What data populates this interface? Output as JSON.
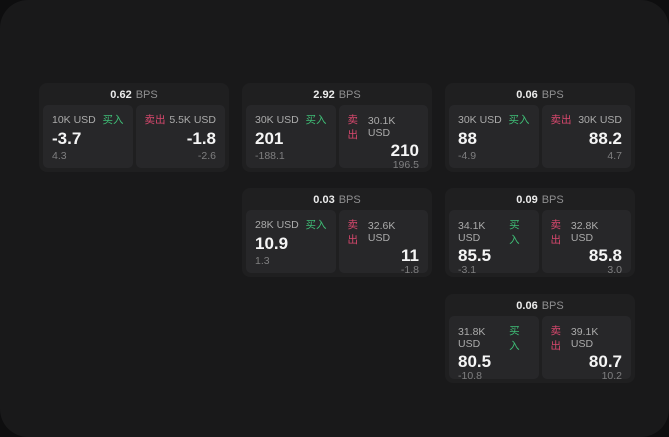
{
  "labels": {
    "bps_unit": "BPS",
    "buy": "买入",
    "sell": "卖出"
  },
  "colors": {
    "buy_green": "#3fbf77",
    "sell_red": "#d9486e",
    "window_bg": "#19191a",
    "card_bg": "#1f1f20",
    "panel_bg": "#272729"
  },
  "cards": [
    {
      "bps": "0.62",
      "buy": {
        "amount": "10K USD",
        "price": "-3.7",
        "delta": "4.3"
      },
      "sell": {
        "amount": "5.5K USD",
        "price": "-1.8",
        "delta": "-2.6"
      }
    },
    {
      "bps": "2.92",
      "buy": {
        "amount": "30K USD",
        "price": "201",
        "delta": "-188.1"
      },
      "sell": {
        "amount": "30.1K USD",
        "price": "210",
        "delta": "196.5"
      }
    },
    {
      "bps": "0.06",
      "buy": {
        "amount": "30K USD",
        "price": "88",
        "delta": "-4.9"
      },
      "sell": {
        "amount": "30K USD",
        "price": "88.2",
        "delta": "4.7"
      }
    },
    {
      "bps": "0.03",
      "buy": {
        "amount": "28K USD",
        "price": "10.9",
        "delta": "1.3"
      },
      "sell": {
        "amount": "32.6K USD",
        "price": "11",
        "delta": "-1.8"
      }
    },
    {
      "bps": "0.09",
      "buy": {
        "amount": "34.1K USD",
        "price": "85.5",
        "delta": "-3.1"
      },
      "sell": {
        "amount": "32.8K USD",
        "price": "85.8",
        "delta": "3.0"
      }
    },
    {
      "bps": "0.06",
      "buy": {
        "amount": "31.8K USD",
        "price": "80.5",
        "delta": "-10.8"
      },
      "sell": {
        "amount": "39.1K USD",
        "price": "80.7",
        "delta": "10.2"
      }
    }
  ]
}
